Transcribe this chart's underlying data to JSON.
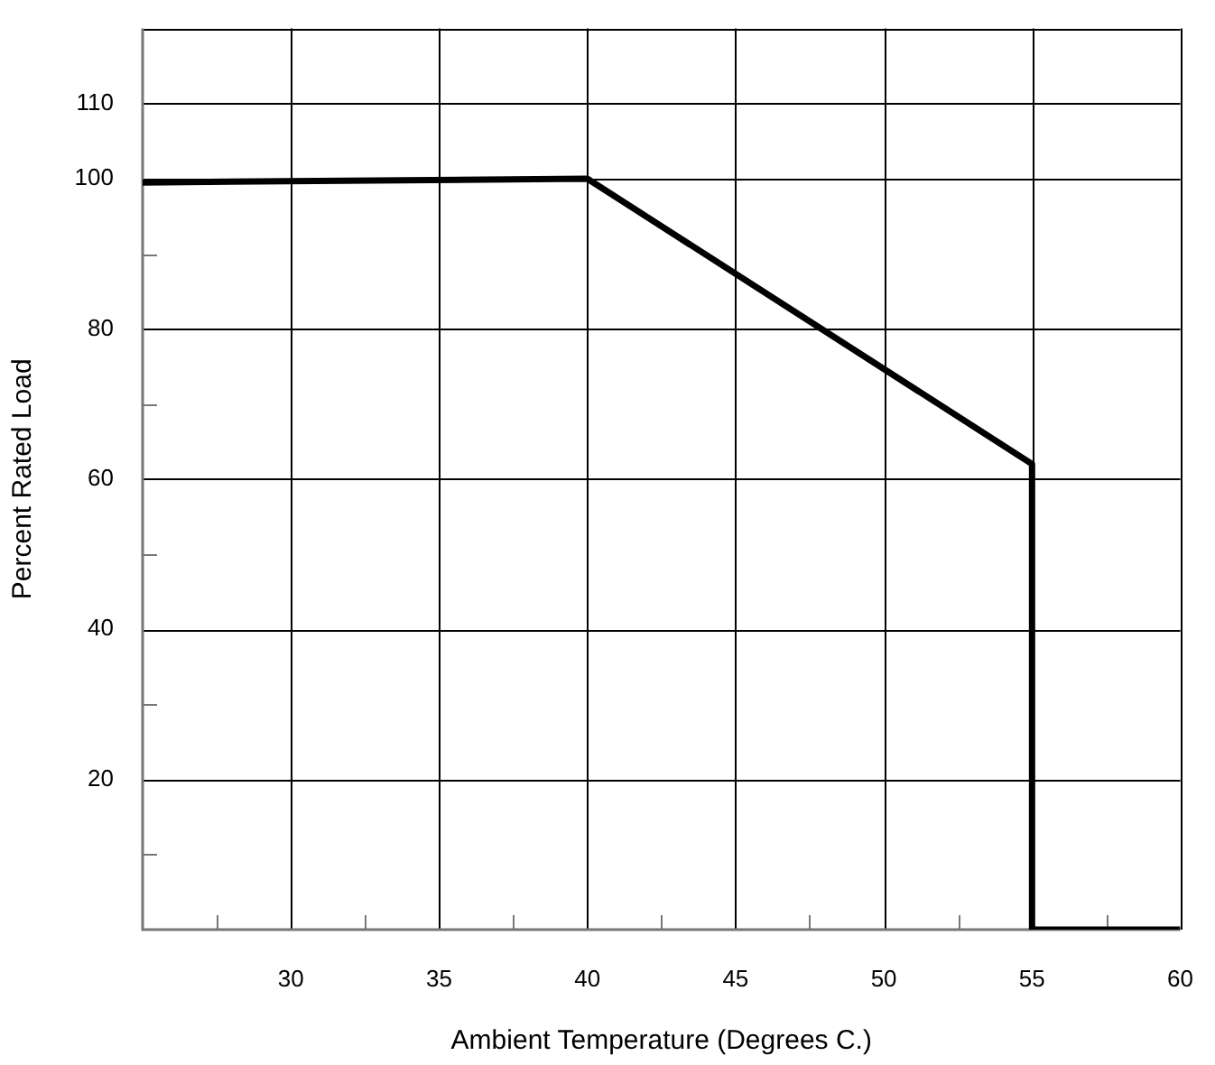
{
  "chart_data": {
    "type": "line",
    "xlabel": "Ambient Temperature (Degrees C.)",
    "ylabel": "Percent Rated Load",
    "x": [
      25,
      40,
      55,
      55,
      60
    ],
    "series": [
      {
        "color": "#000000",
        "values": [
          99.5,
          100,
          62,
          0,
          0
        ]
      }
    ],
    "xlim": [
      25,
      60
    ],
    "xticks": [
      {
        "value": 27.5,
        "label": null
      },
      30,
      {
        "value": 32.5,
        "label": null
      },
      35,
      {
        "value": 37.5,
        "label": null
      },
      40,
      {
        "value": 42.5,
        "label": null
      },
      45,
      {
        "value": 47.5,
        "label": null
      },
      50,
      {
        "value": 52.5,
        "label": null
      },
      55,
      {
        "value": 57.5,
        "label": null
      },
      60
    ],
    "ylim": [
      0,
      120
    ],
    "yticks": [
      {
        "value": 10,
        "label": null
      },
      20,
      {
        "value": 30,
        "label": null
      },
      40,
      {
        "value": 50,
        "label": null
      },
      60,
      {
        "value": 70,
        "label": null
      },
      80,
      {
        "value": 90,
        "label": null
      },
      100,
      110
    ],
    "grid": true,
    "legend": false,
    "marker": "none",
    "line_style": "solid"
  }
}
